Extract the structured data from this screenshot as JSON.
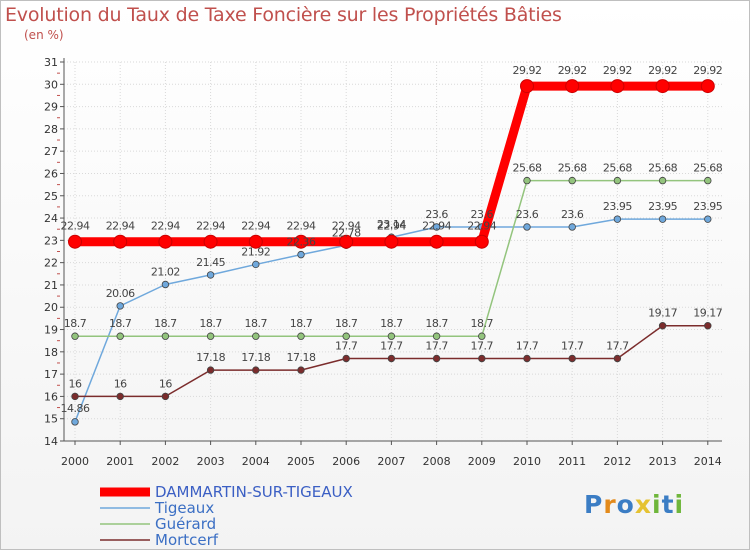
{
  "title": "Evolution du Taux de Taxe Foncière sur les Propriétés Bâties",
  "unit": "(en %)",
  "logo": {
    "letters": [
      "P",
      "r",
      "o",
      "x",
      "i",
      "t",
      "i"
    ],
    "colors": [
      "#3b7dc4",
      "#e38a1b",
      "#3b7dc4",
      "#e5c232",
      "#6fb63b",
      "#3b7dc4",
      "#6fb63b"
    ]
  },
  "chart_data": {
    "type": "line",
    "title": "Evolution du Taux de Taxe Foncière sur les Propriétés Bâties",
    "ylabel": "(en %)",
    "xlabel": "",
    "ylim": [
      14,
      31
    ],
    "yticks": [
      "14",
      "15",
      "16",
      "17",
      "18",
      "19",
      "20",
      "21",
      "22",
      "23",
      "24",
      "25",
      "26",
      "27",
      "28",
      "29",
      "30",
      "31"
    ],
    "x": [
      "2000",
      "2001",
      "2002",
      "2003",
      "2004",
      "2005",
      "2006",
      "2007",
      "2008",
      "2009",
      "2010",
      "2011",
      "2012",
      "2013",
      "2014"
    ],
    "series": [
      {
        "name": "DAMMARTIN-SUR-TIGEAUX",
        "color": "#ff0000",
        "values": [
          22.94,
          22.94,
          22.94,
          22.94,
          22.94,
          22.94,
          22.94,
          22.94,
          22.94,
          22.94,
          29.92,
          29.92,
          29.92,
          29.92,
          29.92
        ],
        "labels": [
          "22.94",
          "22.94",
          "22.94",
          "22.94",
          "22.94",
          "22.94",
          "22.94",
          "22.94",
          "22.94",
          "22.94",
          "29.92",
          "29.92",
          "29.92",
          "29.92",
          "29.92"
        ]
      },
      {
        "name": "Tigeaux",
        "color": "#6fa8dc",
        "values": [
          14.86,
          20.06,
          21.02,
          21.45,
          21.92,
          22.36,
          22.78,
          23.14,
          23.6,
          23.6,
          23.6,
          23.6,
          23.95,
          23.95,
          23.95
        ],
        "labels": [
          "14.86",
          "20.06",
          "21.02",
          "21.45",
          "21.92",
          "22.36",
          "22.78",
          "23.14",
          "23.6",
          "23.6",
          "23.6",
          "23.6",
          "23.95",
          "23.95",
          "23.95"
        ]
      },
      {
        "name": "Guérard",
        "color": "#93c47d",
        "values": [
          18.7,
          18.7,
          18.7,
          18.7,
          18.7,
          18.7,
          18.7,
          18.7,
          18.7,
          18.7,
          25.68,
          25.68,
          25.68,
          25.68,
          25.68
        ],
        "labels": [
          "18.7",
          "18.7",
          "18.7",
          "18.7",
          "18.7",
          "18.7",
          "18.7",
          "18.7",
          "18.7",
          "18.7",
          "25.68",
          "25.68",
          "25.68",
          "25.68",
          "25.68"
        ]
      },
      {
        "name": "Mortcerf",
        "color": "#7b2c2c",
        "values": [
          16,
          16,
          16,
          17.18,
          17.18,
          17.18,
          17.7,
          17.7,
          17.7,
          17.7,
          17.7,
          17.7,
          17.7,
          19.17,
          19.17
        ],
        "labels": [
          "16",
          "16",
          "16",
          "17.18",
          "17.18",
          "17.18",
          "17.7",
          "17.7",
          "17.7",
          "17.7",
          "17.7",
          "17.7",
          "17.7",
          "19.17",
          "19.17"
        ]
      }
    ]
  }
}
